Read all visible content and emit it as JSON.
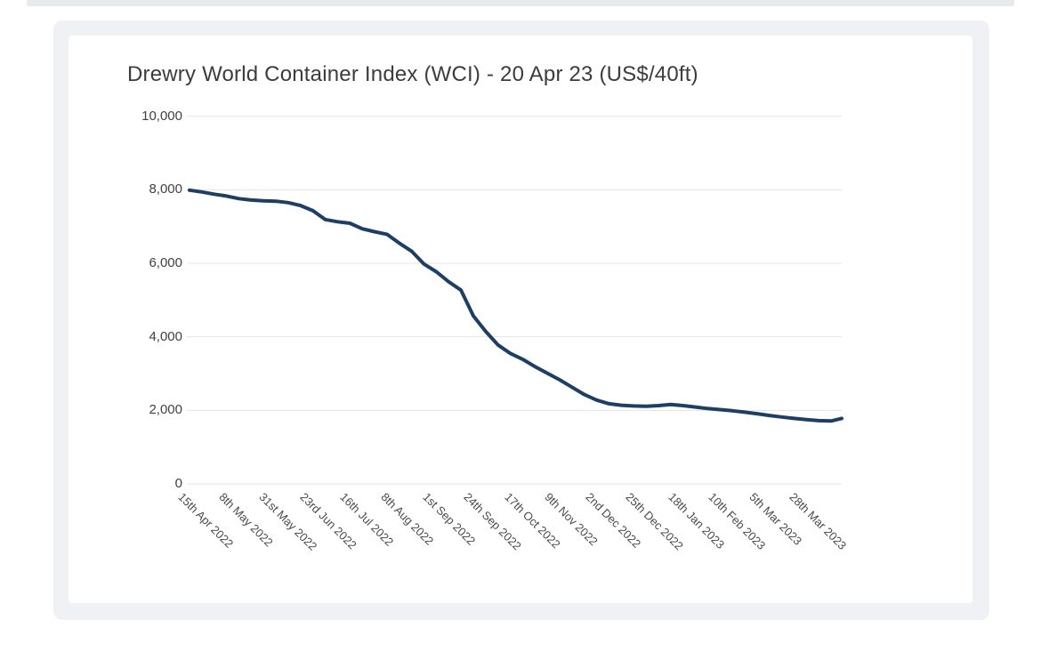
{
  "colors": {
    "top_strip": "#e9eaec",
    "panel_background": "#f0f1f4",
    "card_background": "#ffffff",
    "title_text": "#3c3c3c",
    "y_label_text": "#414141",
    "x_label_text": "#4a4a4a",
    "gridline": "#e4e4e4",
    "line": "#1f3e64"
  },
  "chart_data": {
    "type": "line",
    "title": "Drewry World Container Index (WCI) - 20 Apr 23 (US$/40ft)",
    "ylabel": "",
    "xlabel": "",
    "ylim": [
      0,
      10000
    ],
    "yticks": [
      0,
      2000,
      4000,
      6000,
      8000,
      10000
    ],
    "grid": true,
    "legend": "none",
    "line_color": "#1f3e64",
    "x_tick_labels": [
      {
        "label": "15th Apr 2022",
        "date": "2022-04-15"
      },
      {
        "label": "8th May 2022",
        "date": "2022-05-08"
      },
      {
        "label": "31st May 2022",
        "date": "2022-05-31"
      },
      {
        "label": "23rd Jun 2022",
        "date": "2022-06-23"
      },
      {
        "label": "16th Jul 2022",
        "date": "2022-07-16"
      },
      {
        "label": "8th Aug 2022",
        "date": "2022-08-08"
      },
      {
        "label": "1st Sep 2022",
        "date": "2022-09-01"
      },
      {
        "label": "24th Sep 2022",
        "date": "2022-09-24"
      },
      {
        "label": "17th Oct 2022",
        "date": "2022-10-17"
      },
      {
        "label": "9th Nov 2022",
        "date": "2022-11-09"
      },
      {
        "label": "2nd Dec 2022",
        "date": "2022-12-02"
      },
      {
        "label": "25th Dec 2022",
        "date": "2022-12-25"
      },
      {
        "label": "18th Jan 2023",
        "date": "2023-01-18"
      },
      {
        "label": "10th Feb 2023",
        "date": "2023-02-10"
      },
      {
        "label": "5th Mar 2023",
        "date": "2023-03-05"
      },
      {
        "label": "28th Mar 2023",
        "date": "2023-03-28"
      }
    ],
    "points": [
      {
        "date": "2022-04-15",
        "value": 7990
      },
      {
        "date": "2022-04-22",
        "value": 7940
      },
      {
        "date": "2022-04-29",
        "value": 7880
      },
      {
        "date": "2022-05-06",
        "value": 7830
      },
      {
        "date": "2022-05-13",
        "value": 7760
      },
      {
        "date": "2022-05-20",
        "value": 7720
      },
      {
        "date": "2022-05-27",
        "value": 7700
      },
      {
        "date": "2022-06-03",
        "value": 7690
      },
      {
        "date": "2022-06-10",
        "value": 7650
      },
      {
        "date": "2022-06-17",
        "value": 7570
      },
      {
        "date": "2022-06-24",
        "value": 7430
      },
      {
        "date": "2022-07-01",
        "value": 7190
      },
      {
        "date": "2022-07-08",
        "value": 7130
      },
      {
        "date": "2022-07-15",
        "value": 7090
      },
      {
        "date": "2022-07-22",
        "value": 6940
      },
      {
        "date": "2022-07-29",
        "value": 6860
      },
      {
        "date": "2022-08-05",
        "value": 6790
      },
      {
        "date": "2022-08-12",
        "value": 6550
      },
      {
        "date": "2022-08-19",
        "value": 6330
      },
      {
        "date": "2022-08-26",
        "value": 5980
      },
      {
        "date": "2022-09-02",
        "value": 5770
      },
      {
        "date": "2022-09-09",
        "value": 5500
      },
      {
        "date": "2022-09-16",
        "value": 5270
      },
      {
        "date": "2022-09-23",
        "value": 4570
      },
      {
        "date": "2022-09-30",
        "value": 4150
      },
      {
        "date": "2022-10-07",
        "value": 3780
      },
      {
        "date": "2022-10-14",
        "value": 3550
      },
      {
        "date": "2022-10-21",
        "value": 3390
      },
      {
        "date": "2022-10-28",
        "value": 3190
      },
      {
        "date": "2022-11-04",
        "value": 3010
      },
      {
        "date": "2022-11-11",
        "value": 2830
      },
      {
        "date": "2022-11-18",
        "value": 2630
      },
      {
        "date": "2022-11-25",
        "value": 2430
      },
      {
        "date": "2022-12-02",
        "value": 2280
      },
      {
        "date": "2022-12-09",
        "value": 2180
      },
      {
        "date": "2022-12-16",
        "value": 2140
      },
      {
        "date": "2022-12-23",
        "value": 2120
      },
      {
        "date": "2022-12-30",
        "value": 2110
      },
      {
        "date": "2023-01-06",
        "value": 2130
      },
      {
        "date": "2023-01-13",
        "value": 2160
      },
      {
        "date": "2023-01-20",
        "value": 2130
      },
      {
        "date": "2023-01-27",
        "value": 2090
      },
      {
        "date": "2023-02-03",
        "value": 2050
      },
      {
        "date": "2023-02-10",
        "value": 2020
      },
      {
        "date": "2023-02-17",
        "value": 1990
      },
      {
        "date": "2023-02-24",
        "value": 1950
      },
      {
        "date": "2023-03-03",
        "value": 1910
      },
      {
        "date": "2023-03-10",
        "value": 1860
      },
      {
        "date": "2023-03-17",
        "value": 1820
      },
      {
        "date": "2023-03-24",
        "value": 1780
      },
      {
        "date": "2023-03-31",
        "value": 1750
      },
      {
        "date": "2023-04-07",
        "value": 1720
      },
      {
        "date": "2023-04-14",
        "value": 1710
      },
      {
        "date": "2023-04-20",
        "value": 1780
      }
    ]
  }
}
